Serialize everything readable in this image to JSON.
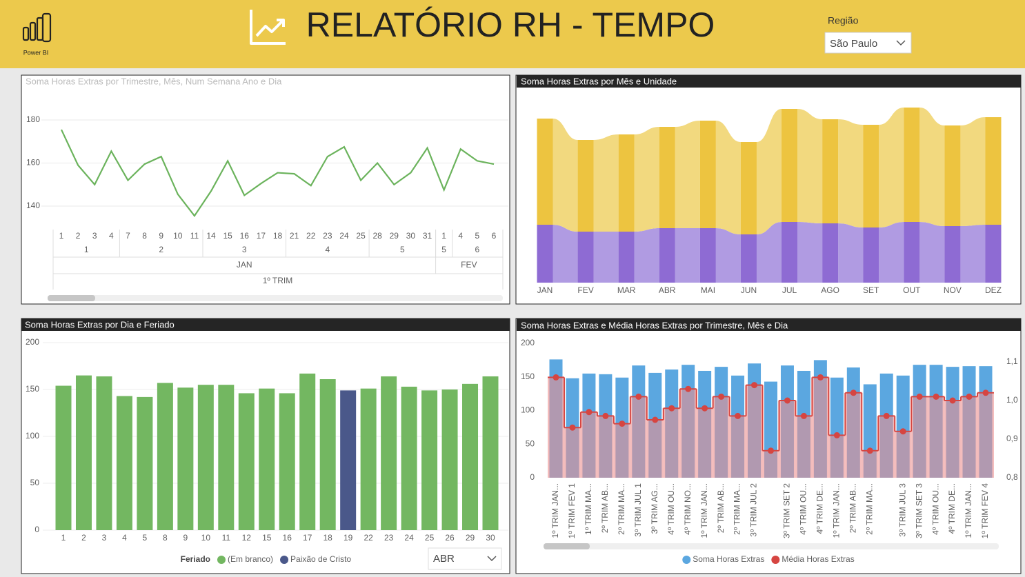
{
  "header": {
    "logo_label": "Power BI",
    "title": "RELATÓRIO RH - TEMPO",
    "filter_label": "Região",
    "filter_value": "São Paulo"
  },
  "slicer": {
    "value": "ABR"
  },
  "chart_data": [
    {
      "type": "line",
      "title": "Soma Horas Extras por Trimestre, Mês, Num Semana Ano e Dia",
      "categories": [
        "1",
        "2",
        "3",
        "4",
        "7",
        "8",
        "9",
        "10",
        "11",
        "14",
        "15",
        "16",
        "17",
        "18",
        "21",
        "22",
        "23",
        "24",
        "25",
        "28",
        "29",
        "30",
        "31",
        "1",
        "4",
        "5",
        "6"
      ],
      "weeks": [
        "1",
        "1",
        "1",
        "1",
        "2",
        "2",
        "2",
        "2",
        "2",
        "3",
        "3",
        "3",
        "3",
        "3",
        "4",
        "4",
        "4",
        "4",
        "4",
        "5",
        "5",
        "5",
        "5",
        "5",
        "6",
        "6",
        "6"
      ],
      "months": [
        "JAN",
        "JAN",
        "JAN",
        "JAN",
        "JAN",
        "JAN",
        "JAN",
        "JAN",
        "JAN",
        "JAN",
        "JAN",
        "JAN",
        "JAN",
        "JAN",
        "JAN",
        "JAN",
        "JAN",
        "JAN",
        "JAN",
        "JAN",
        "JAN",
        "JAN",
        "JAN",
        "FEV",
        "FEV",
        "FEV",
        "FEV"
      ],
      "quarters": [
        "1º TRIM",
        "1º TRIM",
        "1º TRIM",
        "1º TRIM",
        "1º TRIM",
        "1º TRIM",
        "1º TRIM",
        "1º TRIM",
        "1º TRIM",
        "1º TRIM",
        "1º TRIM",
        "1º TRIM",
        "1º TRIM",
        "1º TRIM",
        "1º TRIM",
        "1º TRIM",
        "1º TRIM",
        "1º TRIM",
        "1º TRIM",
        "1º TRIM",
        "1º TRIM",
        "1º TRIM",
        "1º TRIM",
        "1º TRIM",
        "1º TRIM",
        "1º TRIM",
        "1º TRIM"
      ],
      "values": [
        175.5,
        159,
        150,
        165.5,
        152,
        159.5,
        163,
        145.5,
        135.5,
        147,
        161,
        145,
        150.5,
        155.5,
        155,
        149.5,
        163,
        167.5,
        152,
        160,
        150,
        155.5,
        167,
        147.5,
        166.5,
        161,
        159.5
      ],
      "color": "#6bb35c",
      "ylim": [
        128,
        188
      ],
      "yticks": [
        140,
        160,
        180
      ],
      "grid": true
    },
    {
      "type": "ribbon",
      "title": "Soma Horas Extras por Mês e Unidade",
      "categories": [
        "JAN",
        "FEV",
        "MAR",
        "ABR",
        "MAI",
        "JUN",
        "JUL",
        "AGO",
        "SET",
        "OUT",
        "NOV",
        "DEZ"
      ],
      "series": [
        {
          "color": "#8e6bd3",
          "light_color": "#b09be2",
          "values": [
            84,
            74,
            74,
            79,
            79,
            70,
            88,
            86,
            80,
            88,
            82,
            84
          ]
        },
        {
          "color": "#edc440",
          "light_color": "#f2d97f",
          "values": [
            154,
            133,
            141,
            147,
            156,
            134,
            164,
            151,
            149,
            166,
            146,
            156
          ]
        }
      ]
    },
    {
      "type": "bar",
      "title": "Soma Horas Extras por Dia e Feriado",
      "categories": [
        "1",
        "2",
        "3",
        "4",
        "5",
        "8",
        "9",
        "10",
        "11",
        "12",
        "15",
        "16",
        "17",
        "18",
        "19",
        "22",
        "23",
        "24",
        "25",
        "26",
        "29",
        "30"
      ],
      "series": [
        {
          "name": "(Em branco)",
          "color": "#73b761",
          "values": [
            154,
            165,
            164,
            143,
            142,
            157,
            152,
            155,
            155,
            146,
            151,
            146,
            167,
            161,
            null,
            151,
            164,
            153,
            149,
            150,
            156,
            164
          ]
        },
        {
          "name": "Paixão de Cristo",
          "color": "#4a588a",
          "values": [
            null,
            null,
            null,
            null,
            null,
            null,
            null,
            null,
            null,
            null,
            null,
            null,
            null,
            null,
            149,
            null,
            null,
            null,
            null,
            null,
            null,
            null
          ]
        }
      ],
      "legend_title": "Feriado",
      "legend": "bottom",
      "ylim": [
        0,
        200
      ],
      "yticks": [
        0,
        50,
        100,
        150,
        200
      ],
      "grid": true
    },
    {
      "type": "combo",
      "title": "Soma Horas Extras e Média Horas Extras por Trimestre, Mês e Dia",
      "categories": [
        "1º TRIM JAN...",
        "1º TRIM FEV 1",
        "1º TRIM MA...",
        "2º TRIM AB...",
        "2º TRIM MA...",
        "3º TRIM JUL 1",
        "3º TRIM AG...",
        "4º TRIM OU...",
        "4º TRIM NO...",
        "1º TRIM JAN...",
        "2º TRIM AB...",
        "2º TRIM MA...",
        "3º TRIM JUL 2",
        null,
        "3º TRIM SET 2",
        "4º TRIM OU...",
        "4º TRIM DE...",
        "1º TRIM JAN...",
        "2º TRIM AB...",
        "2º TRIM MA...",
        null,
        "3º TRIM JUL 3",
        "3º TRIM SET 3",
        "4º TRIM OU...",
        "4º TRIM DE...",
        "1º TRIM JAN...",
        "1º TRIM FEV 4"
      ],
      "series": [
        {
          "name": "Soma Horas Extras",
          "type": "bar",
          "color": "#5ba7e0",
          "values": [
            176,
            148,
            155,
            154,
            149,
            167,
            156,
            161,
            168,
            159,
            165,
            152,
            170,
            143,
            167,
            159,
            175,
            149,
            164,
            139,
            155,
            152,
            168,
            168,
            165,
            166,
            166
          ]
        },
        {
          "name": "Média Horas Extras",
          "type": "step",
          "axis": "y2",
          "color": "#d64541",
          "area_color": "#eb9090",
          "values": [
            1.06,
            0.93,
            0.97,
            0.96,
            0.94,
            1.01,
            0.95,
            0.98,
            1.03,
            0.98,
            1.01,
            0.96,
            1.04,
            0.87,
            1.0,
            0.96,
            1.06,
            0.91,
            1.02,
            0.87,
            0.96,
            0.92,
            1.01,
            1.01,
            1.0,
            1.01,
            1.02
          ]
        }
      ],
      "legend": "bottom",
      "ylim": [
        0,
        200
      ],
      "yticks": [
        0,
        50,
        100,
        150,
        200
      ],
      "y2lim": [
        0.8,
        1.15
      ],
      "y2ticks": [
        {
          "value": 0.8,
          "label": "0,8"
        },
        {
          "value": 0.9,
          "label": "0,9"
        },
        {
          "value": 1.0,
          "label": "1,0"
        },
        {
          "value": 1.1,
          "label": "1,1"
        }
      ]
    }
  ]
}
